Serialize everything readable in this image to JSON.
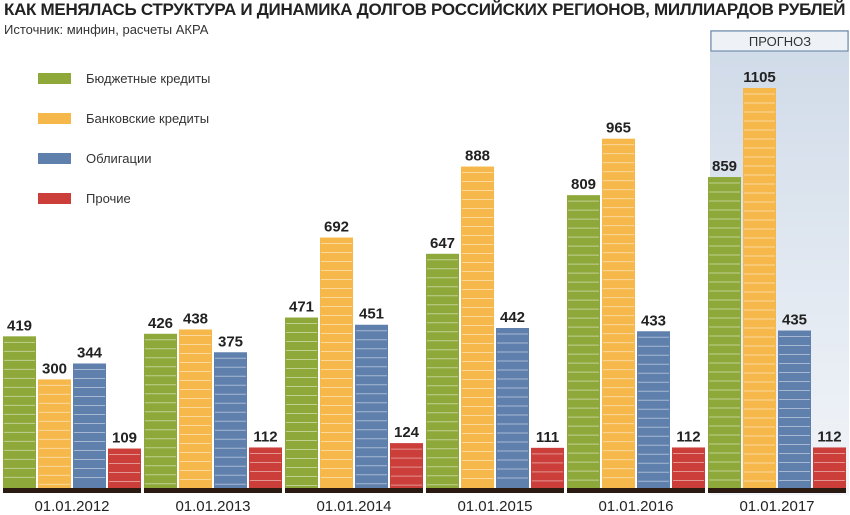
{
  "chart_data": {
    "type": "bar",
    "title": "КАК МЕНЯЛАСЬ СТРУКТУРА И ДИНАМИКА ДОЛГОВ РОССИЙСКИХ РЕГИОНОВ, МИЛЛИАРДОВ РУБЛЕЙ",
    "subtitle": "Источник: минфин, расчеты АКРА",
    "xlabel": "",
    "ylabel": "",
    "ylim": [
      0,
      1105
    ],
    "grid": false,
    "legend_position": "top-left",
    "categories": [
      "01.01.2012",
      "01.01.2013",
      "01.01.2014",
      "01.01.2015",
      "01.01.2016",
      "01.01.2017"
    ],
    "series": [
      {
        "name": "Бюджетные кредиты",
        "color": "#8fa83a",
        "values": [
          419,
          426,
          471,
          647,
          809,
          859
        ]
      },
      {
        "name": "Банковские кредиты",
        "color": "#f7b84b",
        "values": [
          300,
          438,
          692,
          888,
          965,
          1105
        ]
      },
      {
        "name": "Облигации",
        "color": "#5f80ad",
        "values": [
          344,
          375,
          451,
          442,
          433,
          435
        ]
      },
      {
        "name": "Прочие",
        "color": "#cc3e3a",
        "values": [
          109,
          112,
          124,
          111,
          112,
          112
        ]
      }
    ],
    "forecast": {
      "label": "ПРОГНОЗ",
      "category_index": 5
    }
  }
}
